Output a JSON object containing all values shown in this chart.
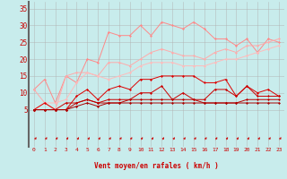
{
  "xlabel": "Vent moyen/en rafales ( km/h )",
  "background_color": "#c8ecec",
  "grid_color": "#b0b0b0",
  "x_values": [
    0,
    1,
    2,
    3,
    4,
    5,
    6,
    7,
    8,
    9,
    10,
    11,
    12,
    13,
    14,
    15,
    16,
    17,
    18,
    19,
    20,
    21,
    22,
    23
  ],
  "line1_color": "#ff8888",
  "line2_color": "#ffaaaa",
  "line3_color": "#ffbbbb",
  "line4_color": "#dd0000",
  "line5_color": "#cc0000",
  "line6_color": "#bb0000",
  "line7_color": "#aa0000",
  "line1_y": [
    11,
    14,
    7,
    15,
    13,
    20,
    19,
    28,
    27,
    27,
    30,
    27,
    31,
    30,
    29,
    31,
    29,
    26,
    26,
    24,
    26,
    22,
    26,
    25
  ],
  "line2_y": [
    11,
    7,
    5,
    15,
    16,
    16,
    15,
    19,
    19,
    18,
    20,
    22,
    23,
    22,
    21,
    21,
    20,
    22,
    23,
    22,
    24,
    24,
    25,
    26
  ],
  "line3_y": [
    5,
    7,
    7,
    8,
    13,
    16,
    15,
    14,
    15,
    16,
    18,
    19,
    19,
    19,
    18,
    18,
    18,
    19,
    20,
    20,
    21,
    22,
    23,
    24
  ],
  "line4_y": [
    5,
    7,
    5,
    5,
    9,
    11,
    8,
    11,
    12,
    11,
    14,
    14,
    15,
    15,
    15,
    15,
    13,
    13,
    14,
    9,
    12,
    10,
    11,
    9
  ],
  "line5_y": [
    5,
    5,
    5,
    7,
    7,
    8,
    7,
    8,
    8,
    8,
    10,
    10,
    12,
    8,
    10,
    8,
    8,
    11,
    11,
    9,
    12,
    9,
    9,
    9
  ],
  "line6_y": [
    5,
    5,
    5,
    5,
    7,
    8,
    7,
    7,
    7,
    8,
    8,
    8,
    8,
    8,
    8,
    8,
    7,
    7,
    7,
    7,
    8,
    8,
    8,
    8
  ],
  "line7_y": [
    5,
    5,
    5,
    5,
    6,
    7,
    6,
    7,
    7,
    7,
    7,
    7,
    7,
    7,
    7,
    7,
    7,
    7,
    7,
    7,
    7,
    7,
    7,
    7
  ],
  "ylim": [
    0,
    37
  ],
  "yticks": [
    5,
    10,
    15,
    20,
    25,
    30,
    35
  ],
  "marker": "D",
  "markersize": 1.5,
  "linewidth": 0.7,
  "arrow_color": "#cc0000"
}
